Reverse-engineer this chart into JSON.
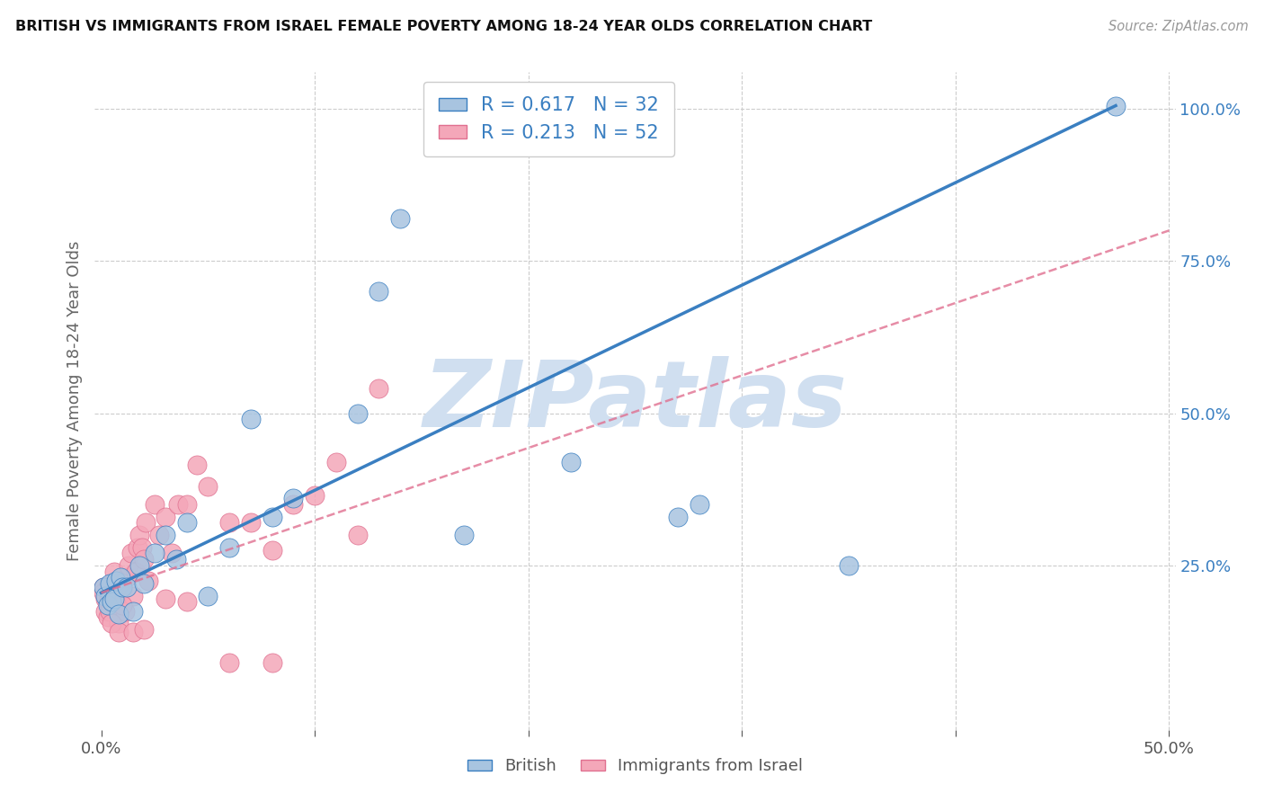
{
  "title": "BRITISH VS IMMIGRANTS FROM ISRAEL FEMALE POVERTY AMONG 18-24 YEAR OLDS CORRELATION CHART",
  "source": "Source: ZipAtlas.com",
  "ylabel": "Female Poverty Among 18-24 Year Olds",
  "xlabel_british": "British",
  "xlabel_israel": "Immigrants from Israel",
  "xlim": [
    -0.003,
    0.503
  ],
  "ylim": [
    -0.02,
    1.06
  ],
  "xtick_vals": [
    0.0,
    0.1,
    0.2,
    0.3,
    0.4,
    0.5
  ],
  "yticks_right": [
    0.25,
    0.5,
    0.75,
    1.0
  ],
  "r_british": 0.617,
  "n_british": 32,
  "r_israel": 0.213,
  "n_israel": 52,
  "color_british": "#a8c4e0",
  "color_israel": "#f4a7b9",
  "line_color_british": "#3a7fc1",
  "line_color_israel": "#e07090",
  "watermark": "ZIPatlas",
  "watermark_color": "#d0dff0",
  "blue_line": [
    [
      0.0,
      0.205
    ],
    [
      0.475,
      1.005
    ]
  ],
  "pink_line": [
    [
      0.0,
      0.205
    ],
    [
      0.5,
      0.8
    ]
  ],
  "british_x": [
    0.001,
    0.002,
    0.003,
    0.004,
    0.005,
    0.006,
    0.007,
    0.008,
    0.009,
    0.01,
    0.012,
    0.015,
    0.018,
    0.02,
    0.025,
    0.03,
    0.035,
    0.04,
    0.05,
    0.06,
    0.07,
    0.08,
    0.09,
    0.12,
    0.13,
    0.14,
    0.17,
    0.22,
    0.27,
    0.35,
    0.475,
    0.28
  ],
  "british_y": [
    0.215,
    0.2,
    0.185,
    0.22,
    0.19,
    0.195,
    0.225,
    0.17,
    0.23,
    0.215,
    0.215,
    0.175,
    0.25,
    0.22,
    0.27,
    0.3,
    0.26,
    0.32,
    0.2,
    0.28,
    0.49,
    0.33,
    0.36,
    0.5,
    0.7,
    0.82,
    0.3,
    0.42,
    0.33,
    0.25,
    1.005,
    0.35
  ],
  "israel_x": [
    0.001,
    0.001,
    0.002,
    0.002,
    0.003,
    0.003,
    0.004,
    0.004,
    0.005,
    0.005,
    0.006,
    0.007,
    0.008,
    0.009,
    0.01,
    0.011,
    0.012,
    0.013,
    0.014,
    0.015,
    0.016,
    0.017,
    0.018,
    0.019,
    0.02,
    0.021,
    0.022,
    0.025,
    0.027,
    0.03,
    0.033,
    0.036,
    0.04,
    0.045,
    0.05,
    0.06,
    0.07,
    0.08,
    0.09,
    0.1,
    0.11,
    0.12,
    0.13,
    0.005,
    0.008,
    0.01,
    0.015,
    0.02,
    0.03,
    0.04,
    0.06,
    0.08
  ],
  "israel_y": [
    0.215,
    0.205,
    0.195,
    0.175,
    0.19,
    0.165,
    0.18,
    0.175,
    0.22,
    0.2,
    0.24,
    0.22,
    0.155,
    0.19,
    0.21,
    0.175,
    0.23,
    0.25,
    0.27,
    0.2,
    0.24,
    0.28,
    0.3,
    0.28,
    0.26,
    0.32,
    0.225,
    0.35,
    0.3,
    0.33,
    0.27,
    0.35,
    0.35,
    0.415,
    0.38,
    0.32,
    0.32,
    0.275,
    0.35,
    0.365,
    0.42,
    0.3,
    0.54,
    0.155,
    0.14,
    0.185,
    0.14,
    0.145,
    0.195,
    0.19,
    0.09,
    0.09
  ]
}
